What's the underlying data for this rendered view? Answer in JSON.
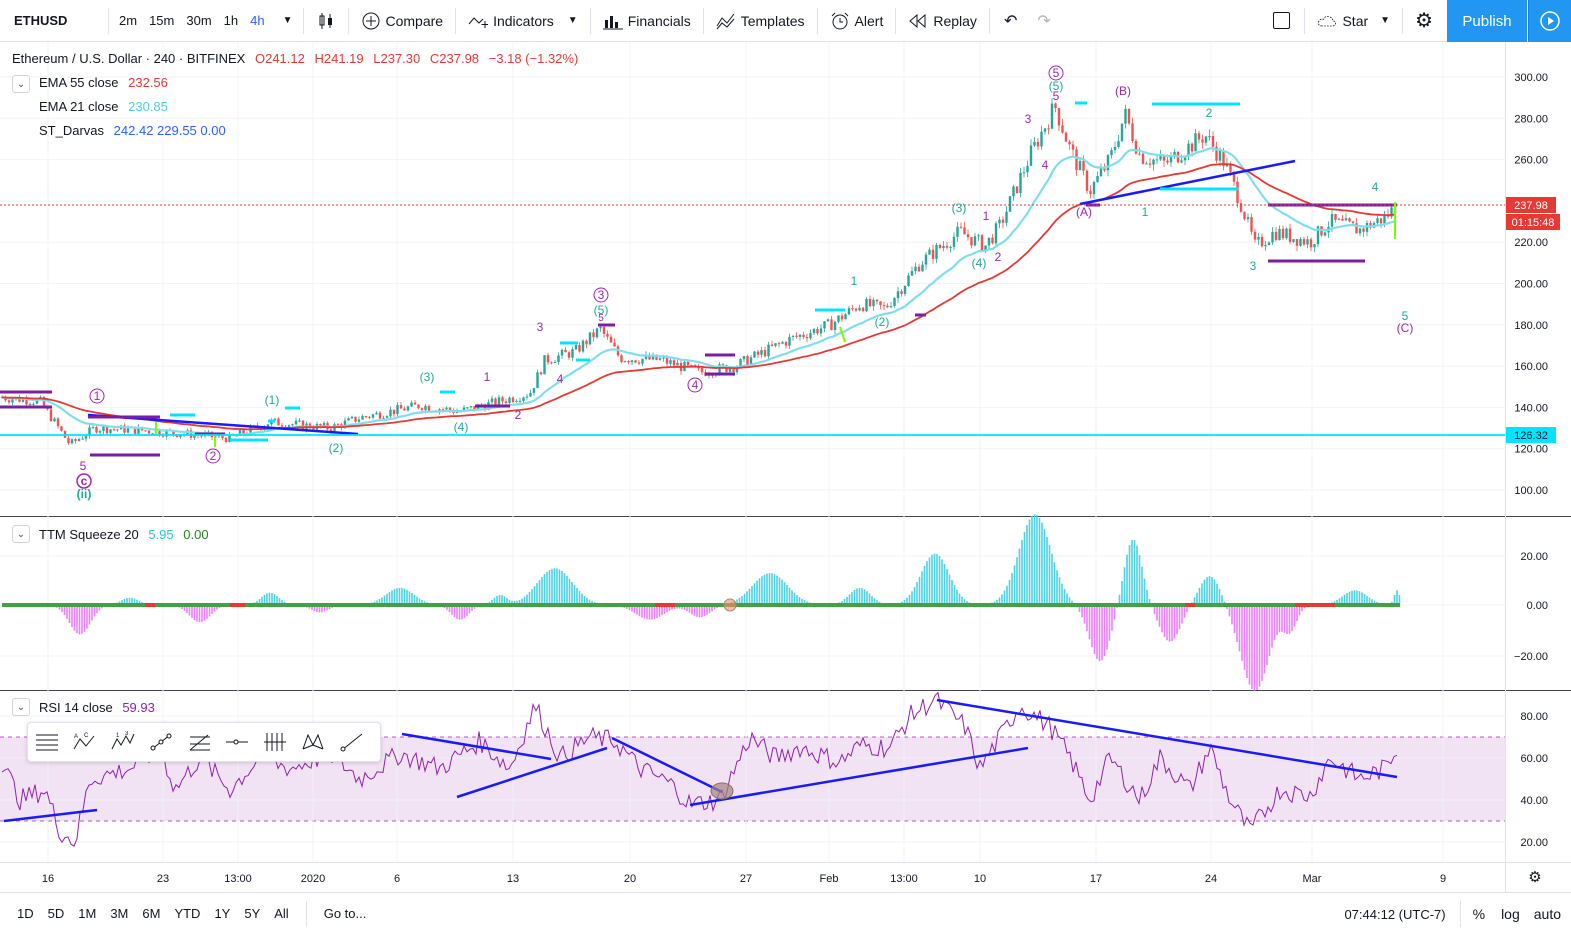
{
  "toolbar": {
    "symbol": "ETHUSD",
    "intervals": [
      "2m",
      "15m",
      "30m",
      "1h",
      "4h"
    ],
    "active_interval": "4h",
    "compare": "Compare",
    "indicators": "Indicators",
    "financials": "Financials",
    "templates": "Templates",
    "alert": "Alert",
    "replay": "Replay",
    "star": "Star",
    "publish": "Publish"
  },
  "main_legend": {
    "title": "Ethereum / U.S. Dollar · 240 · BITFINEX",
    "open": "O241.12",
    "high": "H241.19",
    "low": "L237.30",
    "close": "C237.98",
    "change": "−3.18 (−1.32%)"
  },
  "indicators": [
    {
      "name": "EMA 55 close",
      "value": "232.56",
      "color": "#e53935"
    },
    {
      "name": "EMA 21 close",
      "value": "230.85",
      "color": "#4dd0e1"
    },
    {
      "name": "ST_Darvas",
      "value": "242.42  229.55  0.00",
      "color": "#2962ff"
    }
  ],
  "ttm": {
    "name": "TTM Squeeze 20",
    "v1": "5.95",
    "v2": "0.00",
    "c1": "#26c6da",
    "c2": "#1b8a1b"
  },
  "rsi": {
    "name": "RSI 14 close",
    "value": "59.93",
    "color": "#8e24aa"
  },
  "price_axis": {
    "labels": [
      "300.00",
      "280.00",
      "260.00",
      "240.00",
      "220.00",
      "200.00",
      "180.00",
      "160.00",
      "140.00",
      "120.00",
      "100.00"
    ],
    "last_price": "237.98",
    "countdown": "01:15:48",
    "hline": "126.32"
  },
  "ttm_axis": {
    "labels": [
      "20.00",
      "0.00",
      "−20.00"
    ]
  },
  "rsi_axis": {
    "labels": [
      "80.00",
      "60.00",
      "40.00",
      "20.00"
    ]
  },
  "time_axis": {
    "labels": [
      "16",
      "23",
      "13:00",
      "2020",
      "6",
      "13",
      "20",
      "27",
      "Feb",
      "13:00",
      "10",
      "17",
      "24",
      "Mar",
      "9"
    ]
  },
  "waves": {
    "circ1": "1",
    "circ2": "2",
    "circ3": "3",
    "circ4": "4",
    "circ5": "5",
    "circC": "c",
    "p1": "(1)",
    "p2": "(2)",
    "p3": "(3)",
    "p4": "(4)",
    "p5": "(5)",
    "pii": "(ii)",
    "pA": "(A)",
    "pB": "(B)",
    "pC": "(C)",
    "p3b": "(3)",
    "p4b": "(4)",
    "p2b": "(2)",
    "n1": "1",
    "n2": "2",
    "n3": "3",
    "n4": "4",
    "n5": "5",
    "lab1": "1",
    "lab2": "2",
    "lab3": "3",
    "lab4": "4",
    "lab5": "5",
    "lab5b": "5",
    "lab3b": "3",
    "lab4b": "4",
    "lab5c": "5",
    "lab1b": "1",
    "lab2b": "2"
  },
  "bottom": {
    "ranges": [
      "1D",
      "5D",
      "1M",
      "3M",
      "6M",
      "YTD",
      "1Y",
      "5Y",
      "All"
    ],
    "goto": "Go to...",
    "clock": "07:44:12 (UTC-7)",
    "pct": "%",
    "log": "log",
    "auto": "auto"
  }
}
